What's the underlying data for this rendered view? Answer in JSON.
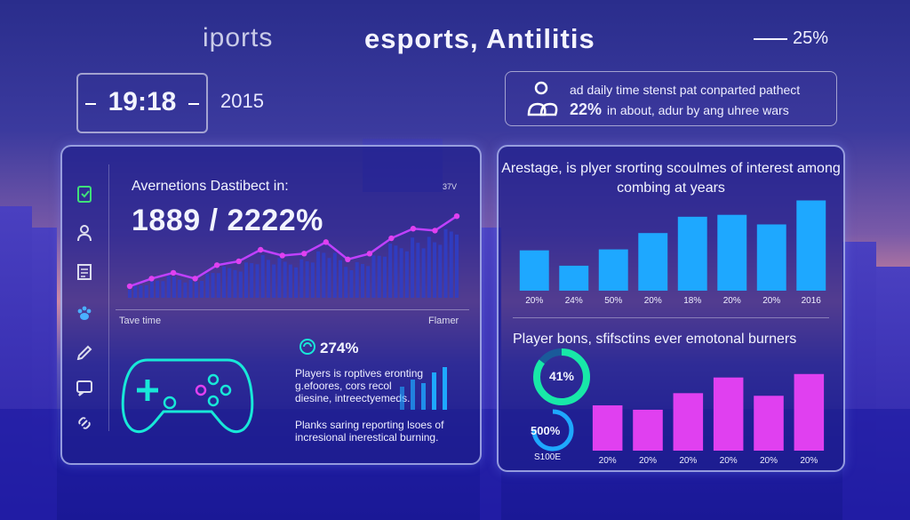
{
  "header": {
    "brand_left": "iports",
    "brand_right": "esports, Antilitis",
    "top_percent": "25%"
  },
  "clock": {
    "time": "19:18",
    "year": "2015"
  },
  "note": {
    "line1": "ad daily time stenst pat conparted pathect",
    "highlight": "22%",
    "line2": "in about, adur by ang uhree wars"
  },
  "left_panel": {
    "title": "Avernetions Dastibect in:",
    "corner_label": "37V",
    "big_value": "1889 / 2222%",
    "axis_left": "Tave time",
    "axis_right": "Flamer",
    "stat_percent": "274%",
    "stat_text": "Players is roptives eronting g.efoores, cors recol diesine, intreectyemeds.",
    "stat_foot": "Planks saring reporting lsoes of incresional inerestical burning.",
    "side_icons": [
      "clipboard-icon",
      "user-icon",
      "document-icon",
      "paw-icon",
      "pen-icon",
      "chat-icon",
      "link-icon"
    ]
  },
  "right_panel": {
    "title": "Arestage, is plyer srorting scoulmes of interest among combing at years",
    "title2": "Player bons, sfifsctins ever emotonal burners",
    "donut1_label": "41%",
    "donut2_label": "500%",
    "donut_sub": "S100E"
  },
  "colors": {
    "cyan": "#1ea8ff",
    "magenta": "#e040f0",
    "line": "#c040ff",
    "teal": "#18e8c8"
  },
  "chart_data": [
    {
      "type": "line",
      "title": "Avernetions Dastibect in:",
      "xlabel": "Tave time",
      "ylabel": "",
      "y": [
        12,
        20,
        26,
        20,
        34,
        38,
        50,
        44,
        46,
        58,
        40,
        46,
        62,
        72,
        70,
        85
      ],
      "ylim": [
        0,
        100
      ]
    },
    {
      "type": "bar",
      "title": "Arestage, is plyer srorting scoulmes of interest among combing at years",
      "categories": [
        "20%",
        "24%",
        "50%",
        "20%",
        "18%",
        "20%",
        "20%",
        "2016"
      ],
      "values": [
        42,
        26,
        43,
        60,
        77,
        79,
        69,
        94
      ],
      "ylim": [
        0,
        100
      ]
    },
    {
      "type": "bar",
      "title": "Player bons, sfifsctins ever emotonal burners",
      "categories": [
        "20%",
        "20%",
        "20%",
        "20%",
        "20%",
        "20%"
      ],
      "values": [
        52,
        47,
        66,
        84,
        63,
        88
      ],
      "ylim": [
        0,
        100
      ]
    }
  ]
}
